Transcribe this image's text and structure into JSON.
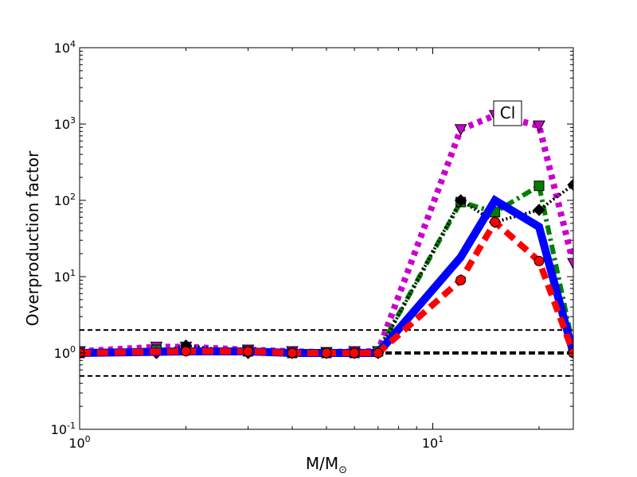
{
  "chart_data": {
    "type": "line",
    "title": "",
    "xlabel": "M/M",
    "xlabel_sub": "⊙",
    "ylabel": "Overproduction factor",
    "xscale": "log",
    "yscale": "log",
    "xlim": [
      1,
      25
    ],
    "ylim": [
      0.1,
      10000
    ],
    "x_ticks": [
      {
        "base": "10",
        "exp": "0"
      },
      {
        "base": "10",
        "exp": "1"
      }
    ],
    "y_ticks": [
      {
        "base": "10",
        "exp": "-1"
      },
      {
        "base": "10",
        "exp": "0"
      },
      {
        "base": "10",
        "exp": "1"
      },
      {
        "base": "10",
        "exp": "2"
      },
      {
        "base": "10",
        "exp": "3"
      },
      {
        "base": "10",
        "exp": "4"
      }
    ],
    "grid": false,
    "annotation": "Cl",
    "reference_lines": [
      {
        "y": 2.0,
        "style": "dashed",
        "weight": "thin"
      },
      {
        "y": 1.0,
        "style": "dashed",
        "weight": "thick"
      },
      {
        "y": 0.5,
        "style": "dashed",
        "weight": "thin"
      }
    ],
    "series": [
      {
        "color": "#cc00cc",
        "line_style": "dotted",
        "marker": "triangle-down",
        "x": [
          1,
          1.65,
          2,
          3,
          4,
          5,
          6,
          7,
          12,
          15,
          20,
          25
        ],
        "y": [
          1.05,
          1.2,
          1.2,
          1.1,
          1.05,
          1.02,
          1.05,
          1.05,
          850,
          1300,
          950,
          15
        ]
      },
      {
        "color": "#008000",
        "line_style": "dashdot",
        "marker": "square",
        "x": [
          1,
          1.65,
          2,
          3,
          4,
          5,
          6,
          7,
          12,
          15,
          20,
          25
        ],
        "y": [
          1.0,
          1.1,
          1.1,
          1.05,
          1.0,
          1.0,
          1.0,
          1.05,
          95,
          70,
          155,
          1.2
        ]
      },
      {
        "color": "#000000",
        "line_style": "dotted",
        "marker": "diamond",
        "x": [
          1,
          1.65,
          2,
          3,
          4,
          5,
          6,
          7,
          12,
          15,
          20,
          25
        ],
        "y": [
          1.0,
          1.0,
          1.25,
          1.0,
          1.0,
          1.0,
          1.0,
          1.0,
          100,
          52,
          75,
          160
        ]
      },
      {
        "color": "#0000ff",
        "line_style": "solid",
        "marker": "none",
        "x": [
          1,
          2,
          3,
          4,
          5,
          6,
          7,
          12,
          15,
          20,
          25
        ],
        "y": [
          1.0,
          1.05,
          1.05,
          1.0,
          1.0,
          1.0,
          1.0,
          18,
          100,
          45,
          1.0
        ]
      },
      {
        "color": "#ff0000",
        "line_style": "dashed",
        "marker": "circle",
        "x": [
          1,
          2,
          3,
          4,
          5,
          6,
          7,
          12,
          15,
          20,
          25
        ],
        "y": [
          1.0,
          1.05,
          1.05,
          1.0,
          1.0,
          1.0,
          1.0,
          9,
          52,
          16,
          1.0
        ]
      }
    ]
  }
}
